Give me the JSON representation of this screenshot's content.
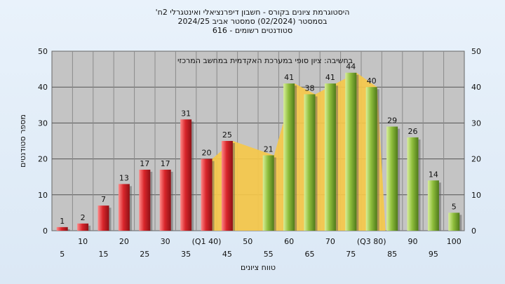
{
  "header": {
    "line1": "'היסטוגרמת ציונים בקורס - חשבון דיפרנציאלי ואינטגרלי 2ח",
    "line2": "בסמסטר  (02/2024)  סמסטר אביב 2024/25",
    "line3": "סטודנטים רשומים - 616"
  },
  "chart_data": {
    "type": "bar",
    "annotation": "בחשיבה: ציון סופי במערכת האקדמית במחשב המרכזי",
    "xlabel": "טווח ציונים",
    "ylabel": "מספר סטודנטים",
    "ylim": [
      0,
      50
    ],
    "yticks": [
      0,
      10,
      20,
      30,
      40,
      50
    ],
    "categories": [
      "5",
      "10",
      "15",
      "20",
      "25",
      "30",
      "35",
      "(Q1 40)",
      "45",
      "50",
      "55",
      "60",
      "65",
      "70",
      "75",
      "(Q3 80)",
      "85",
      "90",
      "95",
      "100"
    ],
    "values": [
      1,
      2,
      7,
      13,
      17,
      17,
      31,
      20,
      25,
      null,
      21,
      41,
      38,
      41,
      44,
      40,
      29,
      26,
      14,
      5
    ],
    "bar_groups": [
      "red",
      "red",
      "red",
      "red",
      "red",
      "red",
      "red",
      "red",
      "red",
      null,
      "green",
      "green",
      "green",
      "green",
      "green",
      "green",
      "green",
      "green",
      "green",
      "green"
    ],
    "quartile_band": {
      "from": "(Q1 40)",
      "to": "(Q3 80)",
      "color": "#f7c948"
    },
    "colors": {
      "red": "#d9262b",
      "green": "#8fbe3c",
      "band": "#f7c948",
      "plot_bg": "#c4c4c4"
    },
    "grid": true
  }
}
